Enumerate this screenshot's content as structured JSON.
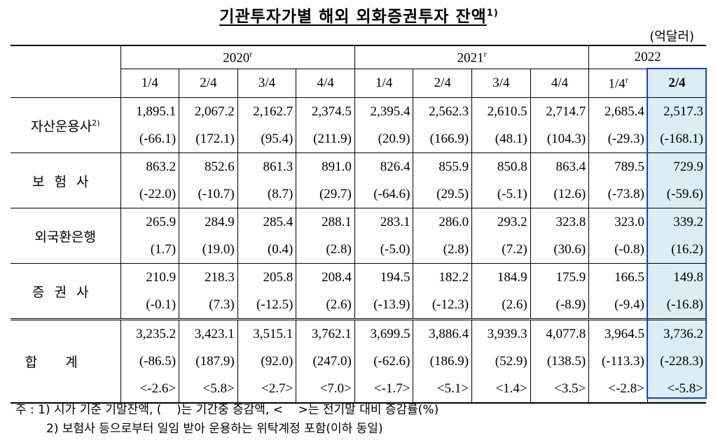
{
  "header": {
    "title": "기관투자가별 해외 외화증권투자 잔액",
    "title_note": "1)",
    "unit": "(억달러)"
  },
  "table": {
    "years": [
      {
        "label": "2020",
        "note": "r"
      },
      {
        "label": "2021",
        "note": "r"
      },
      {
        "label": "2022",
        "note": ""
      }
    ],
    "quarters": [
      {
        "label": "1/4",
        "note": ""
      },
      {
        "label": "2/4",
        "note": ""
      },
      {
        "label": "3/4",
        "note": ""
      },
      {
        "label": "4/4",
        "note": ""
      },
      {
        "label": "1/4",
        "note": ""
      },
      {
        "label": "2/4",
        "note": ""
      },
      {
        "label": "3/4",
        "note": ""
      },
      {
        "label": "4/4",
        "note": ""
      },
      {
        "label": "1/4",
        "note": "r"
      },
      {
        "label": "2/4",
        "note": ""
      }
    ],
    "rows": [
      {
        "label": "자산운용사",
        "note": "2)",
        "lines": [
          [
            "1,895.1",
            "2,067.2",
            "2,162.7",
            "2,374.5",
            "2,395.4",
            "2,562.3",
            "2,610.5",
            "2,714.7",
            "2,685.4",
            "2,517.3"
          ],
          [
            "(-66.1)",
            "(172.1)",
            "(95.4)",
            "(211.9)",
            "(20.9)",
            "(166.9)",
            "(48.1)",
            "(104.3)",
            "(-29.3)",
            "(-168.1)"
          ]
        ]
      },
      {
        "label": "보험사",
        "note": "",
        "lines": [
          [
            "863.2",
            "852.6",
            "861.3",
            "891.0",
            "826.4",
            "855.9",
            "850.8",
            "863.4",
            "789.5",
            "729.9"
          ],
          [
            "(-22.0)",
            "(-10.7)",
            "(8.7)",
            "(29.7)",
            "(-64.6)",
            "(29.5)",
            "(-5.1)",
            "(12.6)",
            "(-73.8)",
            "(-59.6)"
          ]
        ]
      },
      {
        "label": "외국환은행",
        "note": "",
        "lines": [
          [
            "265.9",
            "284.9",
            "285.4",
            "288.1",
            "283.1",
            "286.0",
            "293.2",
            "323.8",
            "323.0",
            "339.2"
          ],
          [
            "(1.7)",
            "(19.0)",
            "(0.4)",
            "(2.8)",
            "(-5.0)",
            "(2.8)",
            "(7.2)",
            "(30.6)",
            "(-0.8)",
            "(16.2)"
          ]
        ]
      },
      {
        "label": "증권사",
        "note": "",
        "lines": [
          [
            "210.9",
            "218.3",
            "205.8",
            "208.4",
            "194.5",
            "182.2",
            "184.9",
            "175.9",
            "166.5",
            "149.8"
          ],
          [
            "(-0.1)",
            "(7.3)",
            "(-12.5)",
            "(2.6)",
            "(-13.9)",
            "(-12.3)",
            "(2.6)",
            "(-8.9)",
            "(-9.4)",
            "(-16.8)"
          ]
        ]
      },
      {
        "label": "합계",
        "note": "",
        "lines": [
          [
            "3,235.2",
            "3,423.1",
            "3,515.1",
            "3,762.1",
            "3,699.5",
            "3,886.4",
            "3,939.3",
            "4,077.8",
            "3,964.5",
            "3,736.2"
          ],
          [
            "(-86.5)",
            "(187.9)",
            "(92.0)",
            "(247.0)",
            "(-62.6)",
            "(186.9)",
            "(52.9)",
            "(138.5)",
            "(-113.3)",
            "(-228.3)"
          ],
          [
            "<-2.6>",
            "<5.8>",
            "<2.7>",
            "<7.0>",
            "<-1.7>",
            "<5.1>",
            "<1.4>",
            "<3.5>",
            "<-2.8>",
            "<-5.8>"
          ]
        ]
      }
    ]
  },
  "footnotes": [
    "주 : 1) 시가 기준 기말잔액, (    )는 기간중 증감액, <    >는 전기말 대비 증감률(%)",
    "2) 보험사 등으로부터 일임 받아 운용하는 위탁계정 포함(이하 동일)"
  ]
}
